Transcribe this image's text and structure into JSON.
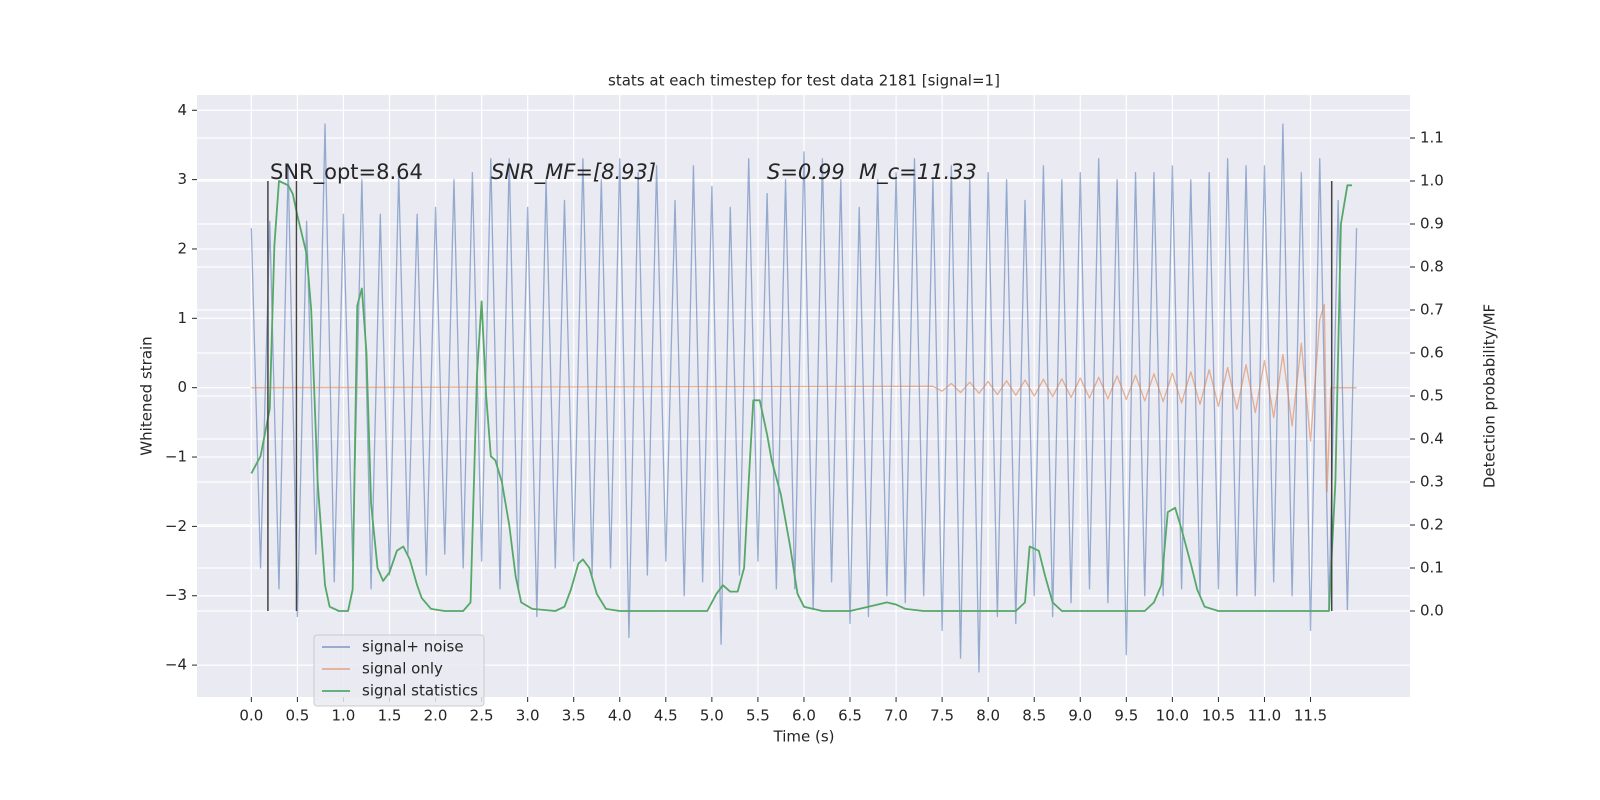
{
  "chart_data": {
    "type": "line",
    "title": "stats at each timestep for test data 2181 [signal=1]",
    "xlabel": "Time (s)",
    "ylabel": "Whitened strain",
    "y2label": "Detection probability/MF",
    "annotations": [
      "SNR_opt=8.64",
      "SNR_MF=[8.93]",
      "S=0.99",
      "M_c=11.33"
    ],
    "xlim": [
      -0.59,
      12.58
    ],
    "ylim": [
      -4.46,
      4.22
    ],
    "y2lim": [
      -0.2,
      1.2
    ],
    "xticks": [
      {
        "value": 0,
        "label": "0.0"
      },
      {
        "value": 0.5,
        "label": "0.5"
      },
      {
        "value": 1,
        "label": "1.0"
      },
      {
        "value": 1.5,
        "label": "1.5"
      },
      {
        "value": 2,
        "label": "2.0"
      },
      {
        "value": 2.5,
        "label": "2.5"
      },
      {
        "value": 3,
        "label": "3.0"
      },
      {
        "value": 3.5,
        "label": "3.5"
      },
      {
        "value": 4,
        "label": "4.0"
      },
      {
        "value": 4.5,
        "label": "4.5"
      },
      {
        "value": 5,
        "label": "5.0"
      },
      {
        "value": 5.5,
        "label": "5.5"
      },
      {
        "value": 6,
        "label": "6.0"
      },
      {
        "value": 6.5,
        "label": "6.5"
      },
      {
        "value": 7,
        "label": "7.0"
      },
      {
        "value": 7.5,
        "label": "7.5"
      },
      {
        "value": 8,
        "label": "8.0"
      },
      {
        "value": 8.5,
        "label": "8.5"
      },
      {
        "value": 9,
        "label": "9.0"
      },
      {
        "value": 9.5,
        "label": "9.5"
      },
      {
        "value": 10,
        "label": "10.0"
      },
      {
        "value": 10.5,
        "label": "10.5"
      },
      {
        "value": 11,
        "label": "11.0"
      },
      {
        "value": 11.5,
        "label": "11.5"
      }
    ],
    "yticks": [
      {
        "value": -4,
        "label": "−4"
      },
      {
        "value": -3,
        "label": "−3"
      },
      {
        "value": -2,
        "label": "−2"
      },
      {
        "value": -1,
        "label": "−1"
      },
      0,
      1,
      2,
      3,
      4
    ],
    "y2ticks": [
      {
        "value": 0,
        "label": "0.0"
      },
      {
        "value": 0.1,
        "label": "0.1"
      },
      {
        "value": 0.2,
        "label": "0.2"
      },
      {
        "value": 0.3,
        "label": "0.3"
      },
      {
        "value": 0.4,
        "label": "0.4"
      },
      {
        "value": 0.5,
        "label": "0.5"
      },
      {
        "value": 0.6,
        "label": "0.6"
      },
      {
        "value": 0.7,
        "label": "0.7"
      },
      {
        "value": 0.8,
        "label": "0.8"
      },
      {
        "value": 0.9,
        "label": "0.9"
      },
      {
        "value": 1,
        "label": "1.0"
      },
      {
        "value": 1.1,
        "label": "1.1"
      }
    ],
    "grid": true,
    "legend": "lower left",
    "vlines": [
      0.18,
      0.49,
      11.73
    ],
    "vline_range": [
      0,
      1
    ],
    "vline_color": "#444444",
    "series": [
      {
        "name": "signal+ noise",
        "color": "#4c72b0",
        "x": [
          0,
          0.1,
          0.2,
          0.3,
          0.4,
          0.5,
          0.6,
          0.7,
          0.8,
          0.9,
          1,
          1.1,
          1.2,
          1.3,
          1.4,
          1.5,
          1.6,
          1.7,
          1.8,
          1.9,
          2,
          2.1,
          2.2,
          2.3,
          2.4,
          2.5,
          2.6,
          2.7,
          2.8,
          2.9,
          3,
          3.1,
          3.2,
          3.3,
          3.4,
          3.5,
          3.6,
          3.7,
          3.8,
          3.9,
          4,
          4.1,
          4.2,
          4.3,
          4.4,
          4.5,
          4.6,
          4.7,
          4.8,
          4.9,
          5,
          5.1,
          5.2,
          5.3,
          5.4,
          5.5,
          5.6,
          5.7,
          5.8,
          5.9,
          6,
          6.1,
          6.2,
          6.3,
          6.4,
          6.5,
          6.6,
          6.7,
          6.8,
          6.9,
          7,
          7.1,
          7.2,
          7.3,
          7.4,
          7.5,
          7.6,
          7.7,
          7.8,
          7.9,
          8,
          8.1,
          8.2,
          8.3,
          8.4,
          8.5,
          8.6,
          8.7,
          8.8,
          8.9,
          9,
          9.1,
          9.2,
          9.3,
          9.4,
          9.5,
          9.6,
          9.7,
          9.8,
          9.9,
          10,
          10.1,
          10.2,
          10.3,
          10.4,
          10.5,
          10.6,
          10.7,
          10.8,
          10.9,
          11,
          11.1,
          11.2,
          11.3,
          11.4,
          11.5,
          11.6,
          11.7,
          11.8,
          11.9,
          12
        ],
        "values": [
          2.3,
          -2.6,
          2.4,
          -2.9,
          3.2,
          -3.3,
          2.4,
          -2.4,
          3.8,
          -2.8,
          2.5,
          -2.5,
          3.0,
          -2.9,
          2.5,
          -2.7,
          3.1,
          -2.4,
          2.5,
          -2.7,
          2.6,
          -2.4,
          3.0,
          -2.6,
          3.1,
          -2.5,
          3.3,
          -2.9,
          3.3,
          -2.9,
          2.6,
          -3.3,
          3.0,
          -2.6,
          2.7,
          -2.5,
          3.3,
          -2.7,
          3.0,
          -2.6,
          3.3,
          -3.6,
          3.1,
          -2.7,
          3.2,
          -2.5,
          2.7,
          -3.0,
          3.2,
          -2.8,
          2.9,
          -3.7,
          2.6,
          -2.7,
          3.3,
          -2.5,
          2.8,
          -2.9,
          3.0,
          -2.9,
          3.4,
          -3.2,
          3.3,
          -2.8,
          3.0,
          -3.4,
          2.6,
          -3.3,
          3.0,
          -3.0,
          3.1,
          -3.1,
          3.3,
          -3.0,
          3.0,
          -3.5,
          3.2,
          -3.9,
          3.0,
          -4.1,
          3.1,
          -3.3,
          3.0,
          -3.4,
          2.7,
          -3.0,
          3.2,
          -3.3,
          3.0,
          -3.1,
          3.1,
          -2.9,
          3.3,
          -3.1,
          3.0,
          -3.85,
          3.1,
          -3.0,
          3.1,
          -3.0,
          3.2,
          -2.9,
          3.0,
          -3.0,
          3.1,
          -2.9,
          3.3,
          -3.0,
          3.2,
          -3.0,
          3.2,
          -2.8,
          3.8,
          -3.0,
          3.1,
          -3.5,
          3.3,
          -3.2,
          2.7,
          -3.2,
          2.3
        ]
      },
      {
        "name": "signal only",
        "color": "#dd8452",
        "x": [
          0,
          7.4,
          7.5,
          7.6,
          7.7,
          7.8,
          7.9,
          8,
          8.1,
          8.2,
          8.3,
          8.4,
          8.5,
          8.6,
          8.7,
          8.8,
          8.9,
          9,
          9.1,
          9.2,
          9.3,
          9.4,
          9.5,
          9.6,
          9.7,
          9.8,
          9.9,
          10,
          10.1,
          10.2,
          10.3,
          10.4,
          10.5,
          10.6,
          10.7,
          10.8,
          10.9,
          11,
          11.1,
          11.2,
          11.3,
          11.4,
          11.5,
          11.6,
          11.65,
          11.68,
          11.72,
          12
        ],
        "values": [
          0,
          0.02,
          -0.05,
          0.06,
          -0.07,
          0.08,
          -0.08,
          0.09,
          -0.1,
          0.1,
          -0.11,
          0.11,
          -0.12,
          0.12,
          -0.13,
          0.13,
          -0.14,
          0.14,
          -0.15,
          0.15,
          -0.16,
          0.17,
          -0.17,
          0.18,
          -0.19,
          0.2,
          -0.2,
          0.21,
          -0.22,
          0.23,
          -0.24,
          0.26,
          -0.27,
          0.29,
          -0.31,
          0.33,
          -0.36,
          0.39,
          -0.43,
          0.48,
          -0.55,
          0.64,
          -0.77,
          0.98,
          1.2,
          -1.5,
          0,
          0
        ]
      },
      {
        "name": "signal statistics",
        "color": "#55a868",
        "axis": "y2",
        "x": [
          0,
          0.1,
          0.2,
          0.25,
          0.3,
          0.4,
          0.45,
          0.5,
          0.6,
          0.65,
          0.72,
          0.8,
          0.85,
          0.95,
          1.05,
          1.1,
          1.15,
          1.2,
          1.25,
          1.3,
          1.37,
          1.43,
          1.5,
          1.58,
          1.65,
          1.72,
          1.8,
          1.85,
          1.95,
          2.1,
          2.3,
          2.38,
          2.45,
          2.5,
          2.55,
          2.6,
          2.65,
          2.72,
          2.8,
          2.87,
          2.93,
          3.05,
          3.3,
          3.4,
          3.47,
          3.55,
          3.6,
          3.67,
          3.75,
          3.85,
          4,
          4.5,
          4.8,
          4.95,
          5.05,
          5.12,
          5.2,
          5.28,
          5.35,
          5.4,
          5.45,
          5.52,
          5.6,
          5.65,
          5.75,
          5.85,
          5.93,
          6,
          6.2,
          6.5,
          6.7,
          6.9,
          7,
          7.1,
          7.3,
          8.3,
          8.4,
          8.45,
          8.55,
          8.62,
          8.7,
          8.8,
          9.7,
          9.8,
          9.88,
          9.95,
          10.03,
          10.1,
          10.2,
          10.27,
          10.35,
          10.5,
          11.7,
          11.77,
          11.83,
          11.9,
          11.95
        ],
        "values": [
          0.32,
          0.36,
          0.47,
          0.85,
          1.0,
          0.99,
          0.97,
          0.92,
          0.83,
          0.7,
          0.3,
          0.06,
          0.01,
          0.0,
          0.0,
          0.05,
          0.71,
          0.75,
          0.6,
          0.25,
          0.1,
          0.07,
          0.09,
          0.14,
          0.15,
          0.12,
          0.06,
          0.03,
          0.005,
          0.0,
          0.0,
          0.02,
          0.55,
          0.72,
          0.5,
          0.36,
          0.35,
          0.3,
          0.2,
          0.08,
          0.02,
          0.005,
          0.0,
          0.01,
          0.05,
          0.11,
          0.12,
          0.1,
          0.04,
          0.005,
          0.0,
          0.0,
          0.0,
          0.0,
          0.04,
          0.06,
          0.045,
          0.045,
          0.1,
          0.3,
          0.49,
          0.49,
          0.41,
          0.35,
          0.27,
          0.15,
          0.04,
          0.01,
          0.0,
          0.0,
          0.01,
          0.02,
          0.015,
          0.005,
          0.0,
          0.0,
          0.02,
          0.15,
          0.14,
          0.08,
          0.02,
          0.0,
          0.0,
          0.02,
          0.06,
          0.23,
          0.24,
          0.19,
          0.11,
          0.05,
          0.01,
          0.0,
          0.0,
          0.3,
          0.9,
          0.99,
          0.99
        ]
      }
    ]
  }
}
